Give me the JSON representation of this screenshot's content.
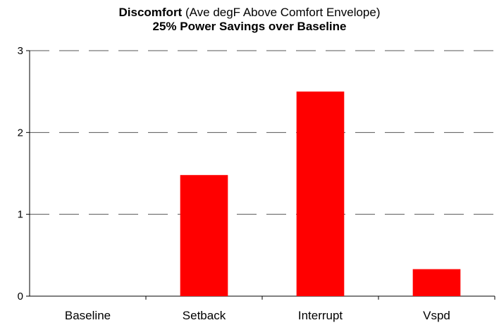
{
  "chart_data": {
    "type": "bar",
    "title_bold": "Discomfort",
    "title_rest": " (Ave degF Above Comfort Envelope)",
    "subtitle": "25% Power Savings over Baseline",
    "categories": [
      "Baseline",
      "Setback",
      "Interrupt",
      "Vspd"
    ],
    "values": [
      0,
      1.48,
      2.5,
      0.33
    ],
    "ylim": [
      0,
      3
    ],
    "yticks": [
      "0",
      "1",
      "2",
      "3"
    ],
    "xlabel": "",
    "ylabel": "",
    "grid": true,
    "legend": false,
    "bar_color": "#ff0000"
  }
}
